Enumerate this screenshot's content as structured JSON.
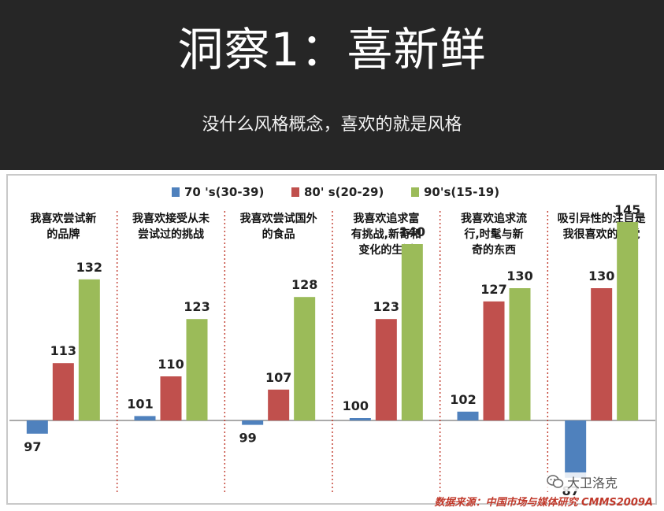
{
  "slide": {
    "title": "洞察1：喜新鲜",
    "subtitle": "没什么风格概念，喜欢的就是风格"
  },
  "source": "数据来源：中国市场与媒体研究 CMMS2009A",
  "watermark": {
    "text": "大卫洛克",
    "icon": "wechat-icon"
  },
  "colors": {
    "header_bg": "#262626",
    "series_70s": "#4f81bd",
    "series_80s": "#c0504d",
    "series_90s": "#9bbb59",
    "divider": "#c0392b",
    "source_text": "#c0392b"
  },
  "chart_data": {
    "type": "bar",
    "baseline": 100,
    "ylim": [
      85,
      150
    ],
    "legend_position": "top",
    "grid": false,
    "categories": [
      "我喜欢尝试新的品牌",
      "我喜欢接受从未尝试过的挑战",
      "我喜欢尝试国外的食品",
      "我喜欢追求富有挑战,新奇和变化的生活",
      "我喜欢追求流行,时髦与新奇的东西",
      "吸引异性的注目是我很喜欢的感觉"
    ],
    "category_lines": [
      [
        "我喜欢尝试新",
        "的品牌"
      ],
      [
        "我喜欢接受从未",
        "尝试过的挑战"
      ],
      [
        "我喜欢尝试国外",
        "的食品"
      ],
      [
        "我喜欢追求富",
        "有挑战,新奇和",
        "变化的生活"
      ],
      [
        "我喜欢追求流",
        "行,时髦与新",
        "奇的东西"
      ],
      [
        "吸引异性的注目是",
        "我很喜欢的感觉"
      ]
    ],
    "series": [
      {
        "name": "70 's(30-39)",
        "values": [
          97,
          101,
          99,
          100,
          102,
          87
        ]
      },
      {
        "name": "80' s(20-29)",
        "values": [
          113,
          110,
          107,
          123,
          127,
          130
        ]
      },
      {
        "name": "90's(15-19)",
        "values": [
          132,
          123,
          128,
          140,
          130,
          145
        ]
      }
    ]
  }
}
